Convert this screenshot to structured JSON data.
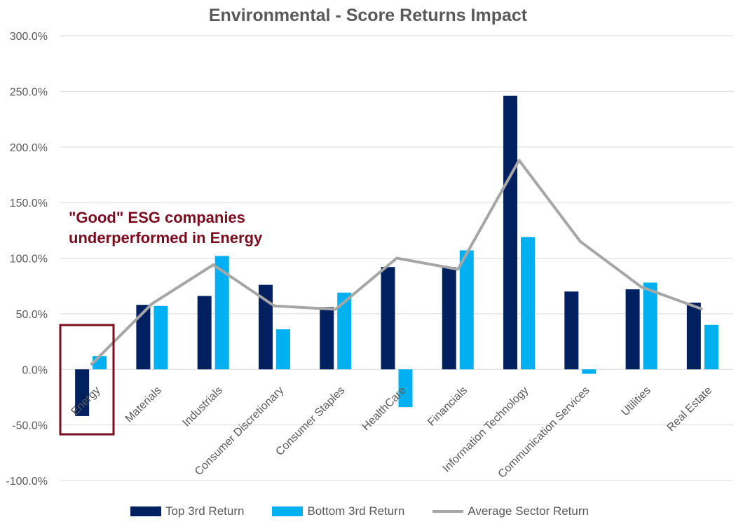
{
  "chart_data": {
    "type": "bar",
    "title": "Environmental - Score Returns Impact",
    "categories": [
      "Energy",
      "Materials",
      "Industrials",
      "Consumer Discretionary",
      "Consumer Staples",
      "HealthCare",
      "Financials",
      "Information Technology",
      "Communication Services",
      "Utilities",
      "Real Estate"
    ],
    "series": [
      {
        "name": "Top 3rd Return",
        "kind": "bar",
        "color": "#002060",
        "values": [
          -42,
          58,
          66,
          76,
          56,
          92,
          92,
          246,
          70,
          72,
          60
        ]
      },
      {
        "name": "Bottom 3rd Return",
        "kind": "bar",
        "color": "#00b0f0",
        "values": [
          12,
          57,
          102,
          36,
          69,
          -34,
          107,
          119,
          -4,
          78,
          40
        ]
      },
      {
        "name": "Average Sector Return",
        "kind": "line",
        "color": "#a6a6a6",
        "values": [
          4,
          59,
          94,
          57,
          54,
          100,
          90,
          188,
          115,
          74,
          54
        ]
      }
    ],
    "ylim": [
      -100,
      300
    ],
    "ytick_step": 50,
    "ytick_labels": [
      "-100.0%",
      "-50.0%",
      "0.0%",
      "50.0%",
      "100.0%",
      "150.0%",
      "200.0%",
      "250.0%",
      "300.0%"
    ],
    "grid": true,
    "legend_position": "bottom",
    "annotation": {
      "lines": [
        "\"Good\" ESG companies",
        "underperformed in Energy"
      ],
      "color": "#7b0c1e",
      "highlight_category": "Energy"
    }
  }
}
